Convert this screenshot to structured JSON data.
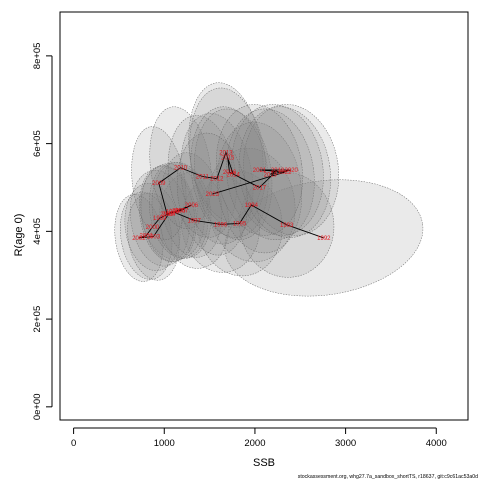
{
  "chart_data": {
    "type": "scatter",
    "xlabel": "SSB",
    "ylabel": "R(age 0)",
    "xlim": [
      -150,
      4350
    ],
    "ylim": [
      -30000,
      900000
    ],
    "x_ticks": [
      0,
      1000,
      2000,
      3000,
      4000
    ],
    "x_tick_labels": [
      "0",
      "1000",
      "2000",
      "3000",
      "4000"
    ],
    "y_ticks": [
      0,
      200000,
      400000,
      600000,
      800000
    ],
    "y_tick_labels": [
      "0e+00",
      "2e+05",
      "4e+05",
      "6e+05",
      "8e+05"
    ],
    "grid": false,
    "legend": "none",
    "colors": {
      "line": "#000000",
      "label": "#e8141c",
      "ellipse_fill": "#808080",
      "ellipse_stroke": "#6a6a6a"
    },
    "points": [
      {
        "year": "1992",
        "x": 2760,
        "y": 385000,
        "sx": 1100,
        "sy": 130000
      },
      {
        "year": "1993",
        "x": 2350,
        "y": 415000,
        "sx": 520,
        "sy": 120000
      },
      {
        "year": "1994",
        "x": 1960,
        "y": 460000,
        "sx": 480,
        "sy": 130000
      },
      {
        "year": "1995",
        "x": 1830,
        "y": 418000,
        "sx": 470,
        "sy": 120000
      },
      {
        "year": "1996",
        "x": 1620,
        "y": 416000,
        "sx": 430,
        "sy": 110000
      },
      {
        "year": "1997",
        "x": 1330,
        "y": 425000,
        "sx": 380,
        "sy": 110000
      },
      {
        "year": "1998",
        "x": 1090,
        "y": 445000,
        "sx": 350,
        "sy": 110000
      },
      {
        "year": "1999",
        "x": 950,
        "y": 430000,
        "sx": 320,
        "sy": 110000
      },
      {
        "year": "2000",
        "x": 870,
        "y": 410000,
        "sx": 300,
        "sy": 100000
      },
      {
        "year": "2001",
        "x": 800,
        "y": 390000,
        "sx": 280,
        "sy": 100000
      },
      {
        "year": "2002",
        "x": 720,
        "y": 385000,
        "sx": 260,
        "sy": 100000
      },
      {
        "year": "2003",
        "x": 880,
        "y": 388000,
        "sx": 280,
        "sy": 100000
      },
      {
        "year": "2004",
        "x": 1050,
        "y": 440000,
        "sx": 300,
        "sy": 110000
      },
      {
        "year": "2005",
        "x": 1160,
        "y": 448000,
        "sx": 320,
        "sy": 110000
      },
      {
        "year": "2006",
        "x": 1300,
        "y": 460000,
        "sx": 330,
        "sy": 120000
      },
      {
        "year": "2007",
        "x": 1190,
        "y": 448000,
        "sx": 320,
        "sy": 110000
      },
      {
        "year": "2008",
        "x": 1030,
        "y": 440000,
        "sx": 300,
        "sy": 110000
      },
      {
        "year": "2009",
        "x": 940,
        "y": 510000,
        "sx": 290,
        "sy": 130000
      },
      {
        "year": "2010",
        "x": 1180,
        "y": 545000,
        "sx": 330,
        "sy": 140000
      },
      {
        "year": "2011",
        "x": 1420,
        "y": 525000,
        "sx": 370,
        "sy": 140000
      },
      {
        "year": "2012",
        "x": 1580,
        "y": 520000,
        "sx": 390,
        "sy": 150000
      },
      {
        "year": "2013",
        "x": 1680,
        "y": 580000,
        "sx": 400,
        "sy": 160000
      },
      {
        "year": "2014",
        "x": 1760,
        "y": 530000,
        "sx": 420,
        "sy": 150000
      },
      {
        "year": "2015",
        "x": 1700,
        "y": 568000,
        "sx": 410,
        "sy": 160000
      },
      {
        "year": "2016",
        "x": 1720,
        "y": 535000,
        "sx": 420,
        "sy": 150000
      },
      {
        "year": "2017",
        "x": 2050,
        "y": 500000,
        "sx": 460,
        "sy": 150000
      },
      {
        "year": "2018",
        "x": 2250,
        "y": 540000,
        "sx": 500,
        "sy": 150000
      },
      {
        "year": "2019",
        "x": 2170,
        "y": 530000,
        "sx": 480,
        "sy": 150000
      },
      {
        "year": "2020",
        "x": 2400,
        "y": 540000,
        "sx": 520,
        "sy": 150000
      },
      {
        "year": "2021",
        "x": 2050,
        "y": 540000,
        "sx": 470,
        "sy": 150000
      },
      {
        "year": "2022",
        "x": 2330,
        "y": 535000,
        "sx": 500,
        "sy": 150000
      },
      {
        "year": "2023",
        "x": 1530,
        "y": 485000,
        "sx": 380,
        "sy": 140000
      }
    ]
  },
  "footer": "stockassessment.org, whg27.7a_sandbox_shortTS, r18637, git:c9c61ac53a0d"
}
